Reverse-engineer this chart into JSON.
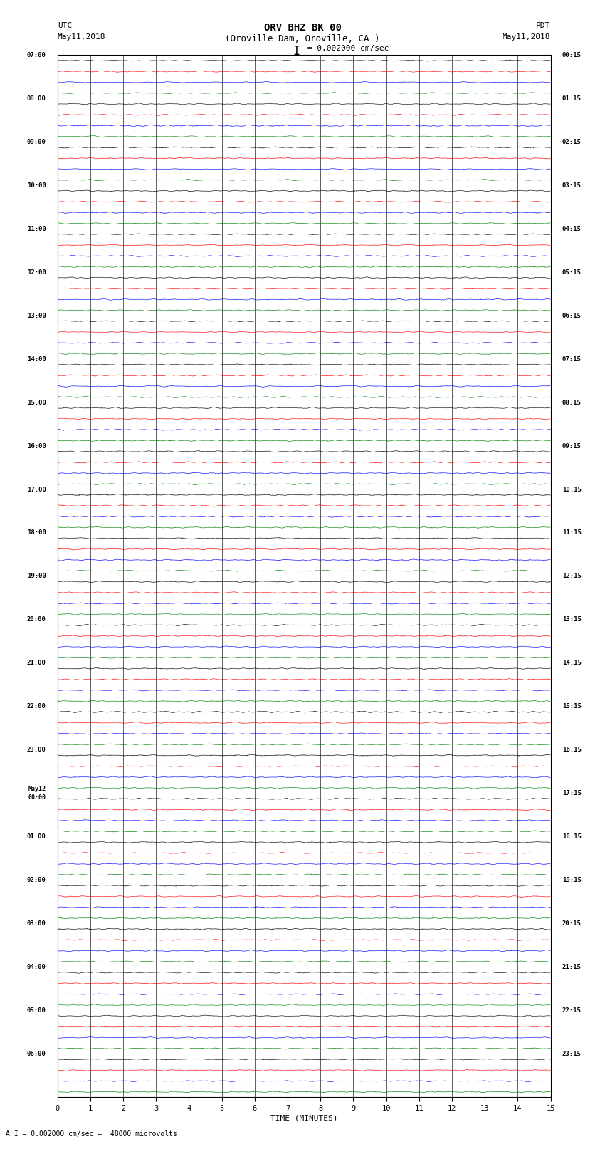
{
  "title_line1": "ORV BHZ BK 00",
  "title_line2": "(Oroville Dam, Oroville, CA )",
  "scale_text": "= 0.002000 cm/sec",
  "bottom_label": "A I = 0.002000 cm/sec =  48000 microvolts",
  "xlabel": "TIME (MINUTES)",
  "left_header": "UTC",
  "left_date": "May11,2018",
  "right_header": "PDT",
  "right_date": "May11,2018",
  "hour_labels_left": [
    "07:00",
    "08:00",
    "09:00",
    "10:00",
    "11:00",
    "12:00",
    "13:00",
    "14:00",
    "15:00",
    "16:00",
    "17:00",
    "18:00",
    "19:00",
    "20:00",
    "21:00",
    "22:00",
    "23:00",
    "May12\n00:00",
    "01:00",
    "02:00",
    "03:00",
    "04:00",
    "05:00",
    "06:00"
  ],
  "hour_labels_right": [
    "00:15",
    "01:15",
    "02:15",
    "03:15",
    "04:15",
    "05:15",
    "06:15",
    "07:15",
    "08:15",
    "09:15",
    "10:15",
    "11:15",
    "12:15",
    "13:15",
    "14:15",
    "15:15",
    "16:15",
    "17:15",
    "18:15",
    "19:15",
    "20:15",
    "21:15",
    "22:15",
    "23:15"
  ],
  "trace_colors": [
    "black",
    "red",
    "blue",
    "green"
  ],
  "n_hours": 24,
  "traces_per_hour": 4,
  "xmin": 0,
  "xmax": 15,
  "xticks": [
    0,
    1,
    2,
    3,
    4,
    5,
    6,
    7,
    8,
    9,
    10,
    11,
    12,
    13,
    14,
    15
  ],
  "grid_color": "#555555",
  "fig_width": 8.5,
  "fig_height": 16.13,
  "noise_amp": 0.08,
  "bg_color": "white"
}
